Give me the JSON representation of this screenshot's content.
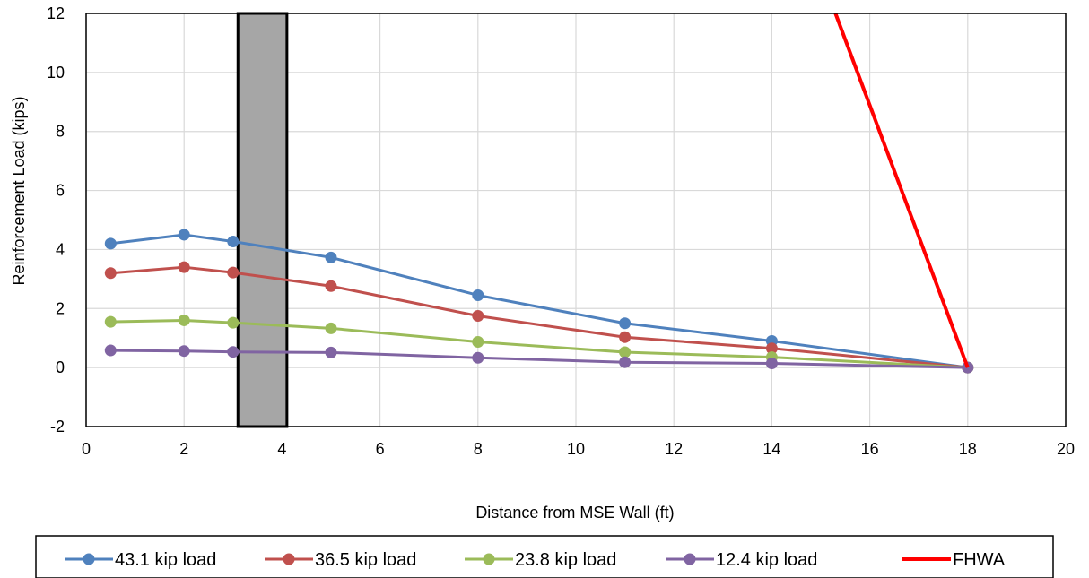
{
  "chart_data": {
    "type": "line",
    "xlabel": "Distance from MSE Wall (ft)",
    "ylabel": "Reinforcement Load (kips)",
    "xlim": [
      0,
      20
    ],
    "ylim": [
      -2,
      12
    ],
    "xticks": [
      "0",
      "2",
      "4",
      "6",
      "8",
      "10",
      "12",
      "14",
      "16",
      "18",
      "20"
    ],
    "yticks": [
      "-2",
      "0",
      "2",
      "4",
      "6",
      "8",
      "10",
      "12"
    ],
    "grid": true,
    "legend_position": "bottom",
    "shaded_region": {
      "x": [
        3.1,
        4.1
      ],
      "color": "#a6a6a6"
    },
    "series": [
      {
        "name": "43.1 kip load",
        "color": "#4f81bd",
        "marker": "circle",
        "x": [
          0.5,
          2,
          3,
          5,
          8,
          11,
          14,
          18
        ],
        "values": [
          4.2,
          4.5,
          4.27,
          3.73,
          2.45,
          1.5,
          0.9,
          0
        ]
      },
      {
        "name": "36.5 kip load",
        "color": "#c0504d",
        "marker": "circle",
        "x": [
          0.5,
          2,
          3,
          5,
          8,
          11,
          14,
          18
        ],
        "values": [
          3.2,
          3.4,
          3.22,
          2.76,
          1.75,
          1.03,
          0.65,
          0
        ]
      },
      {
        "name": "23.8 kip load",
        "color": "#9bbb59",
        "marker": "circle",
        "x": [
          0.5,
          2,
          3,
          5,
          8,
          11,
          14,
          18
        ],
        "values": [
          1.55,
          1.6,
          1.52,
          1.33,
          0.87,
          0.52,
          0.35,
          0
        ]
      },
      {
        "name": "12.4 kip load",
        "color": "#8064a2",
        "marker": "circle",
        "x": [
          0.5,
          2,
          3,
          5,
          8,
          11,
          14,
          18
        ],
        "values": [
          0.58,
          0.56,
          0.53,
          0.51,
          0.33,
          0.18,
          0.14,
          0
        ]
      },
      {
        "name": "FHWA",
        "color": "#ff0000",
        "marker": "none",
        "x": [
          15.3,
          18
        ],
        "values": [
          12,
          0
        ]
      }
    ]
  }
}
